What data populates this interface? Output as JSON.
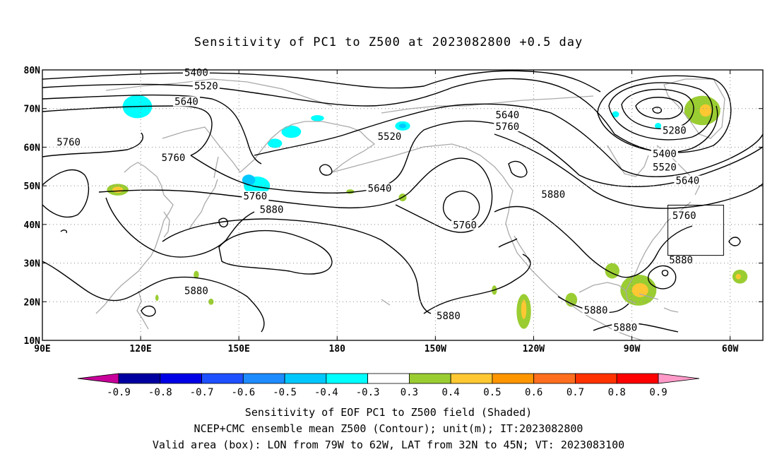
{
  "title": "Sensitivity of PC1 to Z500 at 2023082800 +0.5 day",
  "captions": {
    "line1": "Sensitivity of EOF PC1 to Z500 field (Shaded)",
    "line2": "NCEP+CMC ensemble mean Z500 (Contour); unit(m); IT:2023082800",
    "line3": "Valid area (box): LON from 79W to 62W, LAT from 32N to 45N; VT: 2023083100"
  },
  "map": {
    "lon_range": [
      90,
      310
    ],
    "lat_range": [
      10,
      80
    ],
    "lon_ticks": [
      {
        "lon": 90,
        "label": "90E"
      },
      {
        "lon": 120,
        "label": "120E"
      },
      {
        "lon": 150,
        "label": "150E"
      },
      {
        "lon": 180,
        "label": "180"
      },
      {
        "lon": 210,
        "label": "150W"
      },
      {
        "lon": 240,
        "label": "120W"
      },
      {
        "lon": 270,
        "label": "90W"
      },
      {
        "lon": 300,
        "label": "60W"
      }
    ],
    "lat_ticks": [
      {
        "lat": 80,
        "label": "80N"
      },
      {
        "lat": 70,
        "label": "70N"
      },
      {
        "lat": 60,
        "label": "60N"
      },
      {
        "lat": 50,
        "label": "50N"
      },
      {
        "lat": 40,
        "label": "40N"
      },
      {
        "lat": 30,
        "label": "30N"
      },
      {
        "lat": 20,
        "label": "20N"
      },
      {
        "lat": 10,
        "label": "10N"
      }
    ],
    "valid_box": {
      "lon_min": 281,
      "lon_max": 298,
      "lat_min": 32,
      "lat_max": 45
    },
    "contour_labels": [
      {
        "text": "5400",
        "lon": 137,
        "lat": 79
      },
      {
        "text": "5520",
        "lon": 140,
        "lat": 75.5
      },
      {
        "text": "5640",
        "lon": 134,
        "lat": 71.5
      },
      {
        "text": "5760",
        "lon": 98,
        "lat": 61
      },
      {
        "text": "5760",
        "lon": 130,
        "lat": 57
      },
      {
        "text": "5760",
        "lon": 155,
        "lat": 47
      },
      {
        "text": "5880",
        "lon": 160,
        "lat": 43.5
      },
      {
        "text": "5880",
        "lon": 137,
        "lat": 22.5
      },
      {
        "text": "5520",
        "lon": 196,
        "lat": 62.5
      },
      {
        "text": "5640",
        "lon": 193,
        "lat": 49
      },
      {
        "text": "5760",
        "lon": 219,
        "lat": 39.5
      },
      {
        "text": "5640",
        "lon": 232,
        "lat": 68
      },
      {
        "text": "5760",
        "lon": 232,
        "lat": 65
      },
      {
        "text": "5880",
        "lon": 246,
        "lat": 47.5
      },
      {
        "text": "5280",
        "lon": 283,
        "lat": 64
      },
      {
        "text": "5400",
        "lon": 280,
        "lat": 58
      },
      {
        "text": "5520",
        "lon": 280,
        "lat": 54.5
      },
      {
        "text": "5640",
        "lon": 287,
        "lat": 51
      },
      {
        "text": "5760",
        "lon": 286,
        "lat": 42
      },
      {
        "text": "5880",
        "lon": 285,
        "lat": 30.5
      },
      {
        "text": "5880",
        "lon": 214,
        "lat": 16
      },
      {
        "text": "5880",
        "lon": 259,
        "lat": 17.5
      },
      {
        "text": "5880",
        "lon": 268,
        "lat": 13
      }
    ],
    "shading": [
      {
        "lon": 119,
        "lat": 70.5,
        "rx": 4.5,
        "ry": 3,
        "color": "#00FFFF"
      },
      {
        "lon": 155.5,
        "lat": 50,
        "rx": 4,
        "ry": 2.4,
        "color": "#00FFFF"
      },
      {
        "lon": 153,
        "lat": 51.5,
        "rx": 2,
        "ry": 1.4,
        "color": "#00C8FF"
      },
      {
        "lon": 166,
        "lat": 64,
        "rx": 3,
        "ry": 1.6,
        "color": "#00FFFF"
      },
      {
        "lon": 161,
        "lat": 61,
        "rx": 2.2,
        "ry": 1.2,
        "color": "#00FFFF"
      },
      {
        "lon": 174,
        "lat": 67.5,
        "rx": 2,
        "ry": 0.8,
        "color": "#00FFFF"
      },
      {
        "lon": 200,
        "lat": 65.5,
        "rx": 2.3,
        "ry": 1.2,
        "color": "#00FFFF"
      },
      {
        "lon": 200,
        "lat": 65.5,
        "rx": 1.1,
        "ry": 0.6,
        "color": "#00C8FF"
      },
      {
        "lon": 265,
        "lat": 68.5,
        "rx": 1.1,
        "ry": 0.8,
        "color": "#00FFFF"
      },
      {
        "lon": 278,
        "lat": 65.5,
        "rx": 1,
        "ry": 0.8,
        "color": "#00FFFF"
      },
      {
        "lon": 291.5,
        "lat": 69.5,
        "rx": 5.5,
        "ry": 3.8,
        "color": "#9ACD32"
      },
      {
        "lon": 292.5,
        "lat": 69.5,
        "rx": 1.8,
        "ry": 1.6,
        "color": "#FFC832"
      },
      {
        "lon": 113,
        "lat": 49,
        "rx": 3.3,
        "ry": 1.5,
        "color": "#9ACD32"
      },
      {
        "lon": 113,
        "lat": 49,
        "rx": 1.6,
        "ry": 0.8,
        "color": "#FFC832"
      },
      {
        "lon": 200,
        "lat": 47,
        "rx": 1.2,
        "ry": 1,
        "color": "#9ACD32"
      },
      {
        "lon": 184,
        "lat": 48.5,
        "rx": 1.2,
        "ry": 0.6,
        "color": "#9ACD32"
      },
      {
        "lon": 137,
        "lat": 27,
        "rx": 0.8,
        "ry": 1,
        "color": "#9ACD32"
      },
      {
        "lon": 141.5,
        "lat": 20,
        "rx": 0.8,
        "ry": 0.8,
        "color": "#9ACD32"
      },
      {
        "lon": 125,
        "lat": 21,
        "rx": 0.5,
        "ry": 0.8,
        "color": "#9ACD32"
      },
      {
        "lon": 228,
        "lat": 23,
        "rx": 0.8,
        "ry": 1.2,
        "color": "#9ACD32"
      },
      {
        "lon": 237,
        "lat": 17.5,
        "rx": 2.2,
        "ry": 4.5,
        "color": "#9ACD32"
      },
      {
        "lon": 237,
        "lat": 18,
        "rx": 0.8,
        "ry": 2.5,
        "color": "#FFC832"
      },
      {
        "lon": 251.5,
        "lat": 20.5,
        "rx": 1.8,
        "ry": 1.8,
        "color": "#9ACD32"
      },
      {
        "lon": 264,
        "lat": 28,
        "rx": 2.2,
        "ry": 2,
        "color": "#9ACD32"
      },
      {
        "lon": 272,
        "lat": 23,
        "rx": 5.5,
        "ry": 4,
        "color": "#9ACD32"
      },
      {
        "lon": 272.5,
        "lat": 23,
        "rx": 2.5,
        "ry": 1.8,
        "color": "#FFC832"
      },
      {
        "lon": 303,
        "lat": 26.5,
        "rx": 2.3,
        "ry": 1.8,
        "color": "#9ACD32"
      },
      {
        "lon": 302.5,
        "lat": 26.5,
        "rx": 0.8,
        "ry": 0.7,
        "color": "#FFC832"
      }
    ]
  },
  "colorbar": {
    "colors": [
      "#C8009A",
      "#0000A0",
      "#0000E6",
      "#1E50FF",
      "#1E8CFF",
      "#00C8FF",
      "#00FFFF",
      "#FFFFFF",
      "#9ACD32",
      "#FFC832",
      "#FF9600",
      "#FF6E1E",
      "#FF3200",
      "#FF0000",
      "#FF9AC8"
    ],
    "labels": [
      "-0.9",
      "-0.8",
      "-0.7",
      "-0.6",
      "-0.5",
      "-0.4",
      "-0.3",
      "0.3",
      "0.4",
      "0.5",
      "0.6",
      "0.7",
      "0.8",
      "0.9"
    ]
  }
}
